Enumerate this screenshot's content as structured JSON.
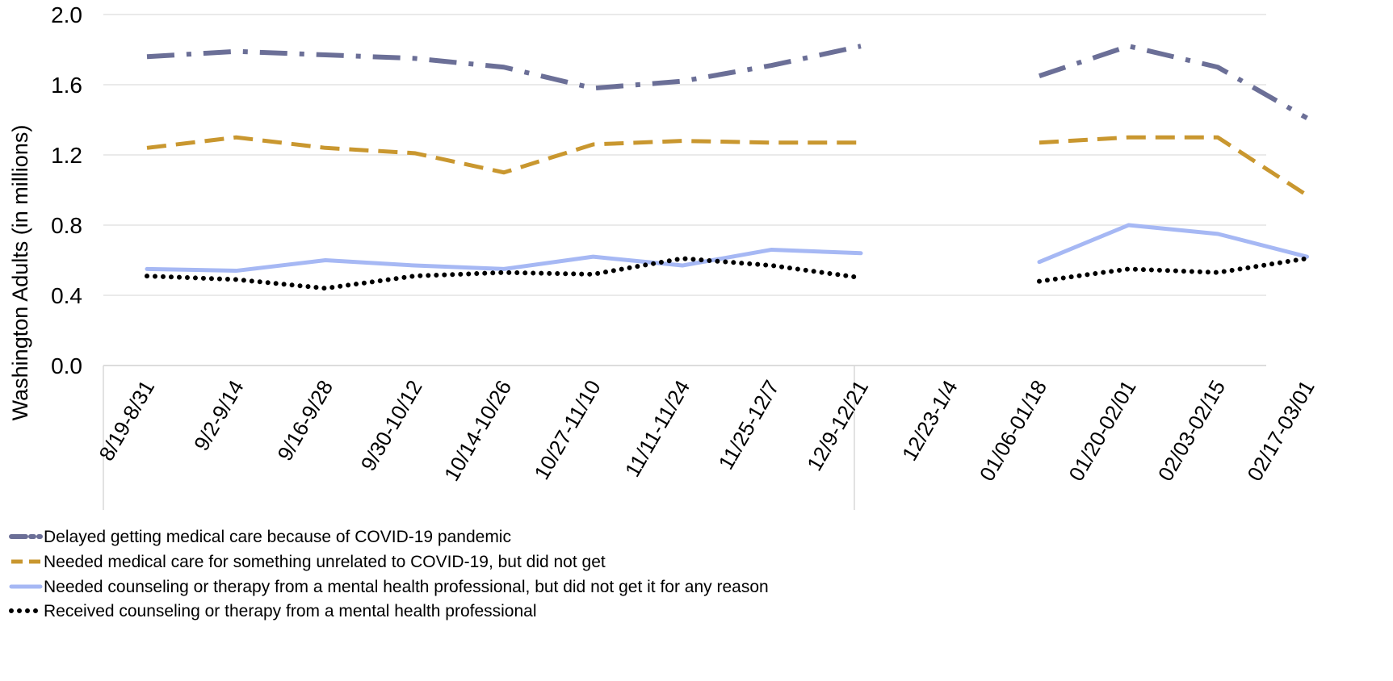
{
  "chart_data": {
    "type": "line",
    "title": "",
    "xlabel": "",
    "ylabel": "Washington Adults (in millions)",
    "ylim": [
      0,
      2.0
    ],
    "yticks": [
      "0.0",
      "0.4",
      "0.8",
      "1.2",
      "1.6",
      "2.0"
    ],
    "grid": "horizontal",
    "legend_position": "bottom-left",
    "categories": [
      "8/19-8/31",
      "9/2-9/14",
      "9/16-9/28",
      "9/30-10/12",
      "10/14-10/26",
      "10/27-11/10",
      "11/11-11/24",
      "11/25-12/7",
      "12/9-12/21",
      "12/23-1/4",
      "01/06-01/18",
      "01/20-02/01",
      "02/03-02/15",
      "02/17-03/01"
    ],
    "series": [
      {
        "name": "Delayed getting medical care because of COVID-19 pandemic",
        "color": "#6b6f97",
        "dash": "dash-dot",
        "values": [
          1.76,
          1.79,
          1.77,
          1.75,
          1.7,
          1.58,
          1.62,
          1.71,
          1.82,
          null,
          1.65,
          1.82,
          1.7,
          1.41
        ]
      },
      {
        "name": "Needed medical care for something unrelated to COVID-19, but did not get",
        "color": "#c9972f",
        "dash": "dash",
        "values": [
          1.24,
          1.3,
          1.24,
          1.21,
          1.1,
          1.26,
          1.28,
          1.27,
          1.27,
          null,
          1.27,
          1.3,
          1.3,
          0.97
        ]
      },
      {
        "name": "Needed counseling or therapy from a mental health professional, but did not get it for any reason",
        "color": "#a6b8f4",
        "dash": "solid",
        "values": [
          0.55,
          0.54,
          0.6,
          0.57,
          0.55,
          0.62,
          0.57,
          0.66,
          0.64,
          null,
          0.59,
          0.8,
          0.75,
          0.62
        ]
      },
      {
        "name": "Received counseling or therapy from a mental health professional",
        "color": "#000000",
        "dash": "dot",
        "values": [
          0.51,
          0.49,
          0.44,
          0.51,
          0.53,
          0.52,
          0.61,
          0.57,
          0.5,
          null,
          0.48,
          0.55,
          0.53,
          0.61
        ]
      }
    ]
  }
}
